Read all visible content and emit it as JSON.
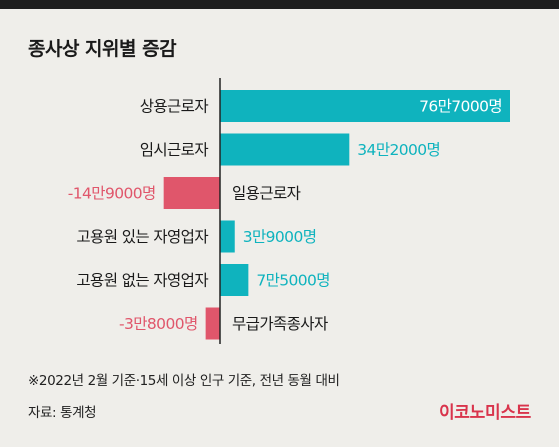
{
  "header": {
    "title": "종사상 지위별 증감"
  },
  "chart_data": {
    "type": "bar",
    "orientation": "horizontal",
    "title": "종사상 지위별 증감",
    "categories": [
      "상용근로자",
      "임시근로자",
      "일용근로자",
      "고용원 있는 자영업자",
      "고용원 없는 자영업자",
      "무급가족종사자"
    ],
    "values": [
      767000,
      342000,
      -149000,
      39000,
      75000,
      -38000
    ],
    "value_labels": [
      "76만7000명",
      "34만2000명",
      "-14만9000명",
      "3만9000명",
      "7만5000명",
      "-3만8000명"
    ],
    "positive_color": "#0fb3be",
    "negative_color": "#e0566b"
  },
  "footer": {
    "note": "※2022년 2월 기준·15세 이상 인구 기준, 전년 동월 대비",
    "source": "자료: 통계청",
    "brand": "이코노미스트"
  }
}
